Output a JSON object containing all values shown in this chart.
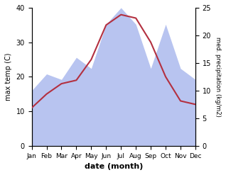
{
  "months": [
    "Jan",
    "Feb",
    "Mar",
    "Apr",
    "May",
    "Jun",
    "Jul",
    "Aug",
    "Sep",
    "Oct",
    "Nov",
    "Dec"
  ],
  "max_temp": [
    11,
    15,
    18,
    19,
    25,
    35,
    38,
    37,
    30,
    20,
    13,
    12
  ],
  "precipitation": [
    10,
    13,
    12,
    16,
    14,
    22,
    25,
    22,
    14,
    22,
    14,
    12
  ],
  "temp_ylim": [
    0,
    40
  ],
  "precip_ylim": [
    0,
    25
  ],
  "temp_ticks": [
    0,
    10,
    20,
    30,
    40
  ],
  "precip_ticks": [
    0,
    5,
    10,
    15,
    20,
    25
  ],
  "temp_color": "#b33040",
  "precip_fill_color": "#b8c4f0",
  "ylabel_left": "max temp (C)",
  "ylabel_right": "med. precipitation (kg/m2)",
  "xlabel": "date (month)",
  "background_color": "#ffffff"
}
